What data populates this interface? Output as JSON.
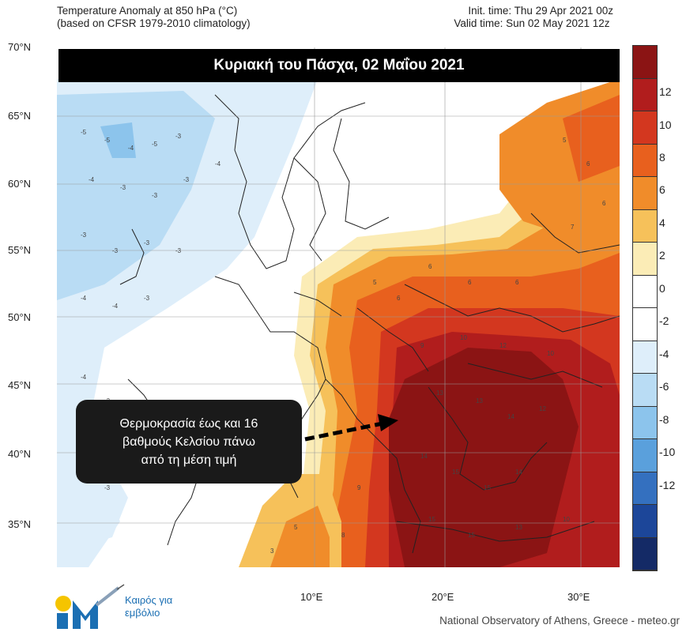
{
  "header": {
    "title_line1": "Temperature Anomaly at 850 hPa (°C)",
    "title_line2": "(based on CFSR 1979-2010 climatology)",
    "init_time": "Init. time: Thu 29 Apr 2021 00z",
    "valid_time": "Valid time: Sun 02 May 2021 12z"
  },
  "banner": "Κυριακή του Πάσχα, 02 Μαΐου 2021",
  "callout": {
    "line1": "Θερμοκρασία έως και 16",
    "line2": "βαθμούς Κελσίου πάνω",
    "line3": "από τη μέση τιμή"
  },
  "axes": {
    "lat_labels": [
      "70°N",
      "65°N",
      "60°N",
      "55°N",
      "50°N",
      "45°N",
      "40°N",
      "35°N"
    ],
    "lon_labels": [
      "10°E",
      "20°E",
      "30°E"
    ]
  },
  "colorbar": {
    "ticks": [
      "12",
      "10",
      "8",
      "6",
      "4",
      "2",
      "0",
      "-2",
      "-4",
      "-6",
      "-8",
      "-10",
      "-12"
    ],
    "colors": [
      "#8b1414",
      "#b11d1d",
      "#d3371f",
      "#e8601e",
      "#f08c2a",
      "#f6c15a",
      "#fbecb6",
      "#ffffff",
      "#ffffff",
      "#deeefa",
      "#b9dcf4",
      "#8cc4ec",
      "#5aa0dc",
      "#3470bf",
      "#1c4699",
      "#142a66"
    ]
  },
  "logo": {
    "line1": "Καιρός για",
    "line2": "εμβόλιο"
  },
  "credit": "National Observatory of Athens, Greece - meteo.gr"
}
